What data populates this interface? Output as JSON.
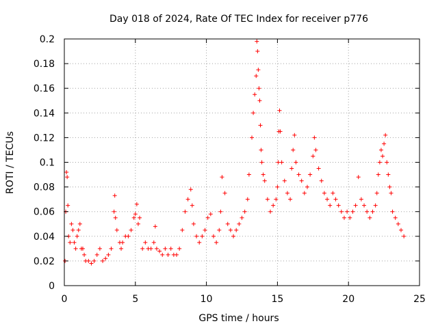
{
  "chart_data": {
    "type": "scatter",
    "title": "Day 018 of 2024, Rate Of TEC Index for receiver p776",
    "xlabel": "GPS time / hours",
    "ylabel": "ROTI / TECUs",
    "xlim": [
      0,
      25
    ],
    "ylim": [
      0,
      0.2
    ],
    "x_ticks": [
      0,
      5,
      10,
      15,
      20,
      25
    ],
    "y_ticks": [
      0,
      0.02,
      0.04,
      0.06,
      0.08,
      0.1,
      0.12,
      0.14,
      0.16,
      0.18,
      0.2
    ],
    "x_tick_labels": [
      "0",
      "5",
      "10",
      "15",
      "20",
      "25"
    ],
    "y_tick_labels": [
      "0",
      "0.02",
      "0.04",
      "0.06",
      "0.08",
      "0.1",
      "0.12",
      "0.14",
      "0.16",
      "0.18",
      "0.2"
    ],
    "grid": true,
    "marker": "+",
    "series": [
      {
        "name": "ROTI",
        "color": "#ff0000",
        "x": [
          0.05,
          0.1,
          0.15,
          0.2,
          0.25,
          0.3,
          0.4,
          0.5,
          0.6,
          0.7,
          0.8,
          0.9,
          1.0,
          1.1,
          1.2,
          1.3,
          1.4,
          1.5,
          1.7,
          1.9,
          2.1,
          2.3,
          2.5,
          2.7,
          2.9,
          3.1,
          3.3,
          3.5,
          3.55,
          3.6,
          3.7,
          3.9,
          4.0,
          4.1,
          4.3,
          4.5,
          4.7,
          4.9,
          5.0,
          5.1,
          5.2,
          5.3,
          5.5,
          5.7,
          5.9,
          6.1,
          6.3,
          6.4,
          6.5,
          6.7,
          6.9,
          7.1,
          7.3,
          7.5,
          7.7,
          7.9,
          8.1,
          8.3,
          8.5,
          8.7,
          8.9,
          9.0,
          9.1,
          9.3,
          9.5,
          9.7,
          9.9,
          10.1,
          10.3,
          10.5,
          10.7,
          10.9,
          11.0,
          11.1,
          11.3,
          11.5,
          11.7,
          11.9,
          12.1,
          12.3,
          12.5,
          12.7,
          12.9,
          13.0,
          13.2,
          13.3,
          13.4,
          13.5,
          13.55,
          13.6,
          13.65,
          13.7,
          13.75,
          13.8,
          13.85,
          13.9,
          14.0,
          14.1,
          14.3,
          14.5,
          14.7,
          14.9,
          15.0,
          15.05,
          15.1,
          15.15,
          15.2,
          15.3,
          15.5,
          15.7,
          15.9,
          16.0,
          16.1,
          16.2,
          16.3,
          16.5,
          16.7,
          16.9,
          17.1,
          17.3,
          17.5,
          17.6,
          17.7,
          17.9,
          18.1,
          18.3,
          18.5,
          18.7,
          18.9,
          19.1,
          19.3,
          19.5,
          19.7,
          19.9,
          20.1,
          20.3,
          20.5,
          20.7,
          20.9,
          21.1,
          21.3,
          21.5,
          21.7,
          21.9,
          22.0,
          22.1,
          22.2,
          22.3,
          22.4,
          22.5,
          22.6,
          22.7,
          22.8,
          22.9,
          23.0,
          23.1,
          23.3,
          23.5,
          23.7,
          23.9
        ],
        "y": [
          0.02,
          0.06,
          0.092,
          0.088,
          0.065,
          0.04,
          0.035,
          0.05,
          0.045,
          0.035,
          0.03,
          0.04,
          0.045,
          0.05,
          0.03,
          0.03,
          0.025,
          0.02,
          0.02,
          0.018,
          0.02,
          0.025,
          0.03,
          0.02,
          0.022,
          0.025,
          0.03,
          0.06,
          0.073,
          0.055,
          0.045,
          0.035,
          0.03,
          0.035,
          0.04,
          0.04,
          0.045,
          0.055,
          0.058,
          0.066,
          0.05,
          0.055,
          0.03,
          0.035,
          0.03,
          0.03,
          0.035,
          0.048,
          0.03,
          0.028,
          0.025,
          0.03,
          0.025,
          0.03,
          0.025,
          0.025,
          0.03,
          0.045,
          0.06,
          0.07,
          0.078,
          0.065,
          0.05,
          0.04,
          0.035,
          0.04,
          0.045,
          0.055,
          0.058,
          0.04,
          0.035,
          0.045,
          0.06,
          0.088,
          0.075,
          0.05,
          0.045,
          0.04,
          0.045,
          0.05,
          0.055,
          0.06,
          0.07,
          0.09,
          0.12,
          0.14,
          0.155,
          0.17,
          0.198,
          0.19,
          0.175,
          0.16,
          0.15,
          0.13,
          0.11,
          0.1,
          0.09,
          0.085,
          0.07,
          0.06,
          0.065,
          0.07,
          0.08,
          0.1,
          0.125,
          0.142,
          0.125,
          0.1,
          0.085,
          0.075,
          0.07,
          0.095,
          0.11,
          0.122,
          0.1,
          0.09,
          0.085,
          0.075,
          0.08,
          0.09,
          0.105,
          0.12,
          0.11,
          0.095,
          0.085,
          0.075,
          0.07,
          0.065,
          0.075,
          0.07,
          0.065,
          0.06,
          0.055,
          0.06,
          0.055,
          0.06,
          0.065,
          0.088,
          0.07,
          0.065,
          0.06,
          0.055,
          0.06,
          0.065,
          0.075,
          0.09,
          0.1,
          0.11,
          0.105,
          0.115,
          0.122,
          0.1,
          0.09,
          0.08,
          0.075,
          0.06,
          0.055,
          0.05,
          0.045,
          0.04
        ]
      }
    ]
  }
}
